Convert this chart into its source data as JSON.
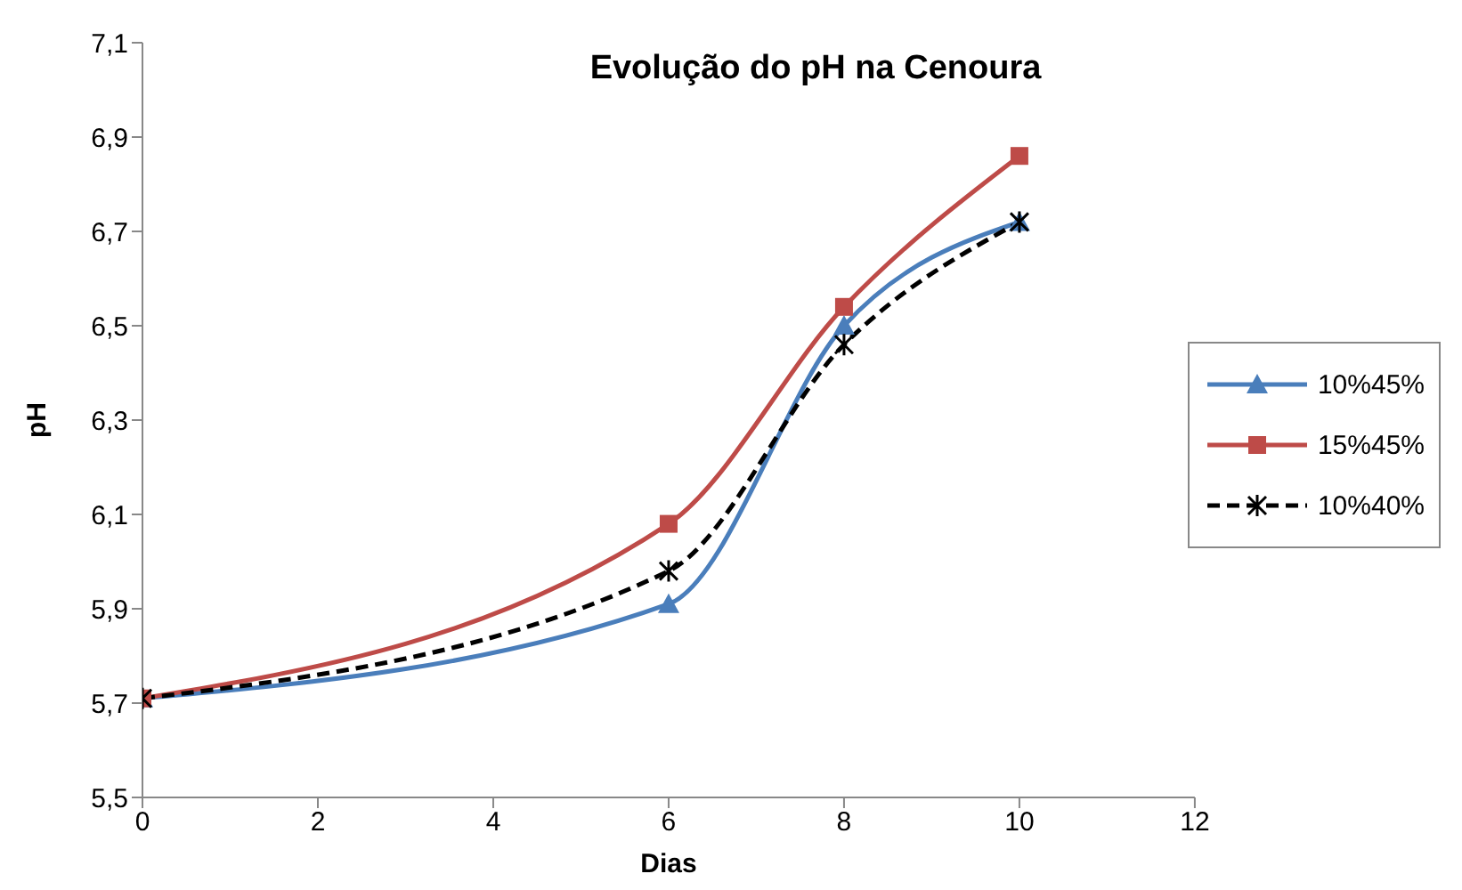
{
  "chart_data": {
    "type": "line",
    "title": "Evolução do pH na Cenoura",
    "xlabel": "Dias",
    "ylabel": "pH",
    "x": [
      0,
      6,
      8,
      10
    ],
    "series": [
      {
        "name": "10%45%",
        "color": "#4a7ebb",
        "values": [
          5.71,
          5.91,
          6.5,
          6.72
        ],
        "marker": "triangle",
        "line_style": "solid"
      },
      {
        "name": "15%45%",
        "color": "#be4b48",
        "values": [
          5.71,
          6.08,
          6.54,
          6.86
        ],
        "marker": "square",
        "line_style": "solid"
      },
      {
        "name": "10%40%",
        "color": "#000000",
        "values": [
          5.71,
          5.98,
          6.46,
          6.72
        ],
        "marker": "cross",
        "line_style": "dashed"
      }
    ],
    "xlim": [
      0,
      12
    ],
    "xticks": [
      0,
      2,
      4,
      6,
      8,
      10,
      12
    ],
    "ylim": [
      5.5,
      7.1
    ],
    "yticks": [
      {
        "value": 5.5,
        "label": "5,5"
      },
      {
        "value": 5.7,
        "label": "5,7"
      },
      {
        "value": 5.9,
        "label": "5,9"
      },
      {
        "value": 6.1,
        "label": "6,1"
      },
      {
        "value": 6.3,
        "label": "6,3"
      },
      {
        "value": 6.5,
        "label": "6,5"
      },
      {
        "value": 6.7,
        "label": "6,7"
      },
      {
        "value": 6.9,
        "label": "6,9"
      },
      {
        "value": 7.1,
        "label": "7,1"
      }
    ],
    "grid": false,
    "legend": "right"
  }
}
